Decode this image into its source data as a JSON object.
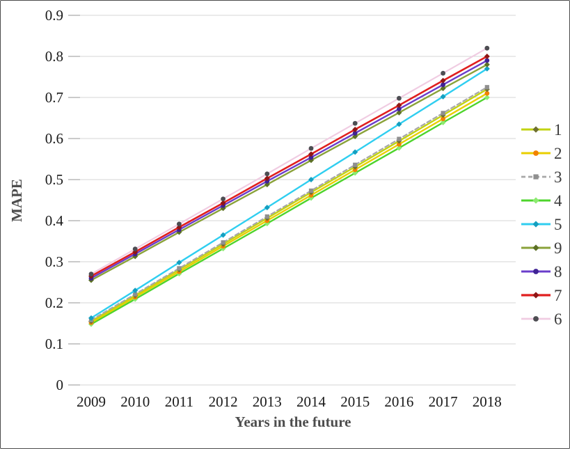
{
  "style": {
    "background": "#ffffff",
    "border_color": "#4a4a4a",
    "grid_color": "#d6d6d6",
    "tick_color": "#ababab",
    "tick_label_color": "#1a1a1a",
    "axis_title_color": "#4d4d4d",
    "legend_label_color": "#3a3a3a"
  },
  "chart_data": {
    "type": "line",
    "title": "",
    "xlabel": "Years in the future",
    "ylabel": "MAPE",
    "x_categories": [
      "2009",
      "2010",
      "2011",
      "2012",
      "2013",
      "2014",
      "2015",
      "2016",
      "2017",
      "2018"
    ],
    "y_ticks": [
      {
        "v": 0.0,
        "label": "0"
      },
      {
        "v": 0.1,
        "label": "0.1"
      },
      {
        "v": 0.2,
        "label": "0.2"
      },
      {
        "v": 0.3,
        "label": "0.3"
      },
      {
        "v": 0.4,
        "label": "0.4"
      },
      {
        "v": 0.5,
        "label": "0.5"
      },
      {
        "v": 0.6,
        "label": "0.6"
      },
      {
        "v": 0.7,
        "label": "0.7"
      },
      {
        "v": 0.8,
        "label": "0.8"
      },
      {
        "v": 0.9,
        "label": "0.9"
      }
    ],
    "ylim": [
      0,
      0.9
    ],
    "grid": true,
    "legend_position": "right",
    "series": [
      {
        "name": "1",
        "color": "#c2d312",
        "marker_color": "#6f7030",
        "marker": "diamond",
        "dash": null,
        "width": 2.4,
        "values": [
          0.155,
          0.218,
          0.281,
          0.343,
          0.406,
          0.469,
          0.531,
          0.594,
          0.657,
          0.72
        ]
      },
      {
        "name": "2",
        "color": "#e9cf00",
        "marker_color": "#f28200",
        "marker": "circle",
        "dash": null,
        "width": 2.4,
        "values": [
          0.152,
          0.214,
          0.276,
          0.338,
          0.4,
          0.462,
          0.524,
          0.586,
          0.648,
          0.71
        ]
      },
      {
        "name": "3",
        "color": "#a8a8a8",
        "marker_color": "#8f8f8f",
        "marker": "square",
        "dash": "6,4",
        "width": 2.2,
        "values": [
          0.158,
          0.221,
          0.284,
          0.347,
          0.41,
          0.473,
          0.536,
          0.599,
          0.662,
          0.725
        ]
      },
      {
        "name": "4",
        "color": "#4ed42c",
        "marker_color": "#8ceb70",
        "marker": "diamond",
        "dash": null,
        "width": 2.4,
        "values": [
          0.148,
          0.209,
          0.271,
          0.332,
          0.393,
          0.455,
          0.516,
          0.577,
          0.639,
          0.7
        ]
      },
      {
        "name": "5",
        "color": "#2fcef0",
        "marker_color": "#149fc0",
        "marker": "diamond",
        "dash": null,
        "width": 2.4,
        "values": [
          0.163,
          0.23,
          0.298,
          0.365,
          0.432,
          0.5,
          0.567,
          0.635,
          0.702,
          0.77
        ]
      },
      {
        "name": "9",
        "color": "#8aa23a",
        "marker_color": "#5c7026",
        "marker": "diamond",
        "dash": null,
        "width": 2.4,
        "values": [
          0.255,
          0.313,
          0.372,
          0.43,
          0.488,
          0.547,
          0.605,
          0.663,
          0.722,
          0.78
        ]
      },
      {
        "name": "8",
        "color": "#6a3dcb",
        "marker_color": "#3f2394",
        "marker": "circle",
        "dash": null,
        "width": 2.4,
        "values": [
          0.26,
          0.319,
          0.378,
          0.437,
          0.496,
          0.554,
          0.613,
          0.672,
          0.731,
          0.79
        ]
      },
      {
        "name": "7",
        "color": "#e01f1f",
        "marker_color": "#8f1515",
        "marker": "diamond",
        "dash": null,
        "width": 2.6,
        "values": [
          0.265,
          0.324,
          0.384,
          0.443,
          0.503,
          0.562,
          0.622,
          0.681,
          0.741,
          0.8
        ]
      },
      {
        "name": "6",
        "color": "#f0cce2",
        "marker_color": "#4d4d52",
        "marker": "circle",
        "dash": null,
        "width": 2.2,
        "values": [
          0.27,
          0.331,
          0.392,
          0.453,
          0.514,
          0.576,
          0.637,
          0.698,
          0.759,
          0.82
        ]
      }
    ],
    "draw_order": [
      "4",
      "2",
      "1",
      "3",
      "5",
      "9",
      "8",
      "7",
      "6"
    ]
  }
}
